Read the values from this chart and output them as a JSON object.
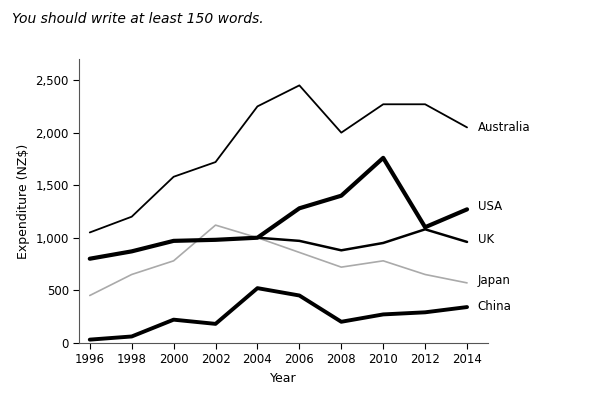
{
  "years": [
    1996,
    1998,
    2000,
    2002,
    2004,
    2006,
    2008,
    2010,
    2012,
    2014
  ],
  "series": {
    "Australia": [
      1050,
      1200,
      1580,
      1720,
      2250,
      2450,
      2000,
      2270,
      2270,
      2050
    ],
    "USA": [
      800,
      870,
      970,
      980,
      1000,
      1280,
      1400,
      1760,
      1100,
      1270
    ],
    "UK": [
      800,
      870,
      970,
      980,
      1000,
      970,
      880,
      950,
      1080,
      960
    ],
    "Japan": [
      450,
      650,
      780,
      1120,
      1000,
      860,
      720,
      780,
      650,
      570
    ],
    "China": [
      30,
      60,
      220,
      180,
      520,
      450,
      200,
      270,
      290,
      340
    ]
  },
  "line_styles": {
    "Australia": {
      "color": "#000000",
      "linewidth": 1.3
    },
    "USA": {
      "color": "#000000",
      "linewidth": 3.0
    },
    "UK": {
      "color": "#000000",
      "linewidth": 1.8
    },
    "Japan": {
      "color": "#aaaaaa",
      "linewidth": 1.2
    },
    "China": {
      "color": "#000000",
      "linewidth": 2.8
    }
  },
  "label_offsets": {
    "Australia": 50,
    "USA": 0,
    "UK": 0,
    "Japan": 0,
    "China": 0
  },
  "title": "You should write at least 150 words.",
  "xlabel": "Year",
  "ylabel": "Expenditure (NZ$)",
  "ylim": [
    0,
    2700
  ],
  "yticks": [
    0,
    500,
    1000,
    1500,
    2000,
    2500
  ],
  "ytick_labels": [
    "0",
    "500",
    "1,000",
    "1,500",
    "2,000",
    "2,500"
  ],
  "background_color": "#ffffff",
  "title_fontsize": 10,
  "axis_label_fontsize": 9,
  "tick_fontsize": 8.5,
  "annotation_fontsize": 8.5
}
